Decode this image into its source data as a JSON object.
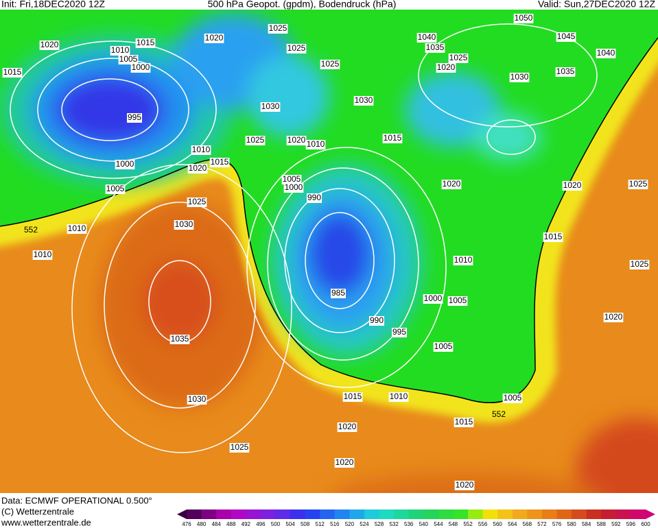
{
  "header": {
    "init": "Init: Fri,18DEC2020 12Z",
    "title": "500 hPa Geopot. (gpdm), Bodendruck (hPa)",
    "valid": "Valid: Sun,27DEC2020 12Z"
  },
  "isobar_labels": [
    1020,
    1015,
    1010,
    1005,
    1000,
    1015,
    995,
    1000,
    1005,
    1010,
    1010,
    1020,
    1025,
    1025,
    1025,
    1030,
    1030,
    1025,
    1020,
    1010,
    1010,
    1015,
    1020,
    1025,
    1030,
    1035,
    1030,
    1025,
    1005,
    1000,
    990,
    985,
    990,
    995,
    1000,
    1005,
    1010,
    1005,
    1005,
    1010,
    1015,
    1020,
    1015,
    1020,
    1020,
    1015,
    1020,
    1040,
    1035,
    1025,
    1020,
    1030,
    1050,
    1045,
    1040,
    1035,
    1020,
    1025,
    1015,
    1025,
    1020
  ],
  "contour_labels": [
    552,
    552
  ],
  "footer": {
    "data": "Data: ECMWF OPERATIONAL 0.500°",
    "copyright": "(C) Wetterzentrale",
    "url": "www.wetterzentrale.de"
  },
  "colorbar": {
    "ticks": [
      476,
      480,
      484,
      488,
      492,
      496,
      500,
      504,
      508,
      512,
      516,
      520,
      524,
      528,
      532,
      536,
      540,
      544,
      548,
      552,
      556,
      560,
      564,
      568,
      572,
      576,
      580,
      584,
      588,
      592,
      596,
      600
    ]
  }
}
